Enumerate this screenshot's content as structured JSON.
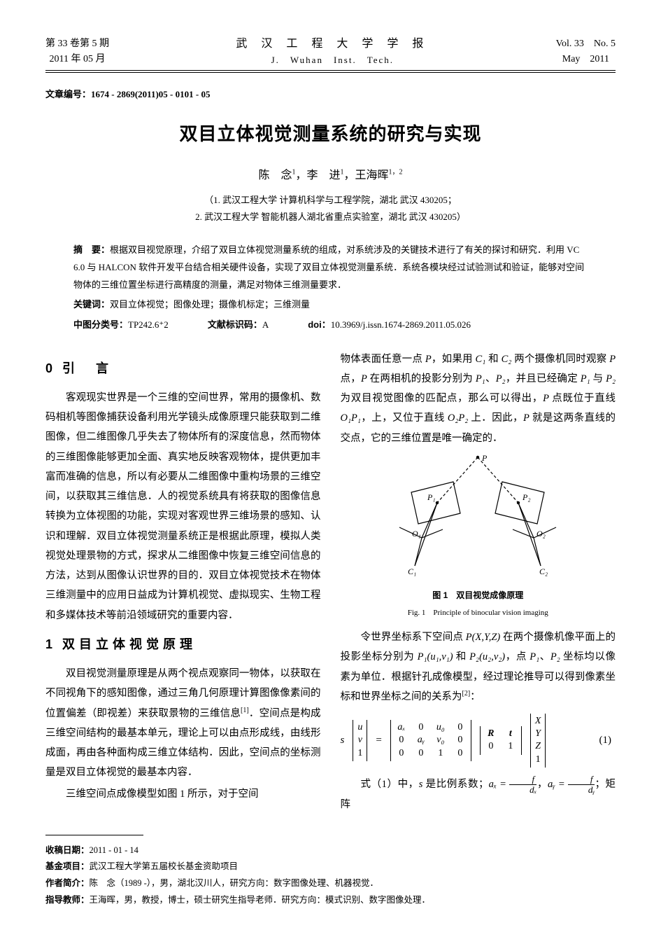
{
  "header": {
    "vol_issue_cn": "第 33 卷第 5 期",
    "date_cn": "2011 年 05 月",
    "journal_cn": "武 汉 工 程 大 学 学 报",
    "journal_en": "J.　Wuhan　Inst.　Tech.",
    "vol_issue_en": "Vol. 33　No. 5",
    "date_en": "May　2011"
  },
  "article_id_label": "文章编号：",
  "article_id": "1674 - 2869(2011)05 - 0101 - 05",
  "title": "双目立体视觉测量系统的研究与实现",
  "authors_html": "陈　念<sup>1</sup>，李　进<sup>1</sup>，王海晖<sup>1，2</sup>",
  "affiliations": [
    "（1. 武汉工程大学 计算机科学与工程学院，湖北 武汉 430205；",
    "2. 武汉工程大学 智能机器人湖北省重点实验室，湖北 武汉 430205）"
  ],
  "abstract": {
    "label": "摘　要：",
    "text": "根据双目视觉原理，介绍了双目立体视觉测量系统的组成，对系统涉及的关键技术进行了有关的探讨和研究．利用 VC 6.0 与 HALCON 软件开发平台结合相关硬件设备，实现了双目立体视觉测量系统．系统各模块经过试验测试和验证，能够对空间物体的三维位置坐标进行高精度的测量，满足对物体三维测量要求．"
  },
  "keywords": {
    "label": "关键词：",
    "text": "双目立体视觉；图像处理；摄像机标定；三维测量"
  },
  "class_no": {
    "label": "中图分类号：",
    "value": "TP242.6⁺2"
  },
  "doc_code": {
    "label": "文献标识码：",
    "value": "A"
  },
  "doi": {
    "label": "doi：",
    "value": "10.3969/j.issn.1674-2869.2011.05.026"
  },
  "sections": {
    "s0": {
      "num": "0",
      "title": "引　言"
    },
    "s1": {
      "num": "1",
      "title": "双目立体视觉原理"
    }
  },
  "body": {
    "p_intro_left": "客观现实世界是一个三维的空间世界，常用的摄像机、数码相机等图像捕获设备利用光学镜头成像原理只能获取到二维图像，但二维图像几乎失去了物体所有的深度信息，然而物体的三维图像能够更加全面、真实地反映客观物体，提供更加丰富而准确的信息，所以有必要从二维图像中重构场景的三维空间，以获取其三维信息．人的视觉系统具有将获取的图像信息转换为立体视图的功能，实现对客观世界三维场景的感知、认识和理解．双目立体视觉测量系统正是根据此原理，模拟人类视觉处理景物的方式，探求从二维图像中恢复三维空间信息的方法，达到从图像认识世界的目的．双目立体视觉技术在物体三维测量中的应用日益成为计算机视觉、虚拟现实、生物工程和多媒体技术等前沿领域研究的重要内容．",
    "p_s1_a": "双目视觉测量原理是从两个视点观察同一物体，以获取在不同视角下的感知图像，通过三角几何原理计算图像像素间的位置偏差（即视差）来获取景物的三维信息",
    "ref1": "[1]",
    "p_s1_b": "．空间点是构成三维空间结构的最基本单元，理论上可以由点形成线，由线形成面，再由各种面构成三维立体结构．因此，空间点的坐标测量是双目立体视觉的最基本内容．",
    "p_s1_c": "三维空间点成像模型如图 1 所示，对于空间",
    "p_right_1a": "物体表面任意一点 ",
    "p_right_1b": "，如果用 ",
    "p_right_1c": " 和 ",
    "p_right_1d": " 两个摄像机同时观察 ",
    "p_right_1e": " 点，",
    "p_right_1f": " 在两相机的投影分别为 ",
    "p_right_1g": "、",
    "p_right_1h": "，并且已经确定 ",
    "p_right_1i": " 与 ",
    "p_right_1j": " 为双目视觉图像的匹配点，那么可以得出，",
    "p_right_1k": " 点既位于直线 ",
    "p_right_1l": "，上，又位于直线 ",
    "p_right_1m": " 上．因此，",
    "p_right_1n": " 就是这两条直线的交点，它的三维位置是唯一确定的．",
    "fig1_cn": "图 1　双目视觉成像原理",
    "fig1_en": "Fig. 1　Principle of binocular vision imaging",
    "p_right_2a": "令世界坐标系下空间点 ",
    "p_right_2b": " 在两个摄像机像平面上的投影坐标分别为 ",
    "p_right_2c": " 和 ",
    "p_right_2d": "，点 ",
    "p_right_2e": "、",
    "p_right_2f": " 坐标均以像素为单位．根据针孔成像模型，经过理论推导可以得到像素坐标和世界坐标之间的关系为",
    "ref2": "[2]",
    "colon": "：",
    "eq1_num": "(1)",
    "p_eq_after_a": "式（1）中，",
    "p_eq_after_b": " 是比例系数；",
    "p_eq_after_c": "，",
    "p_eq_after_d": "；矩阵"
  },
  "figure1": {
    "P": "P",
    "P1": "P₁",
    "P2": "P₂",
    "O1": "O₁",
    "O2": "O₂",
    "C1": "C₁",
    "C2": "C₂",
    "stroke": "#000000",
    "dash": "4,3"
  },
  "equation1": {
    "s": "s",
    "uv1": [
      "u",
      "v",
      "1"
    ],
    "intr": [
      [
        "aₓ",
        "0",
        "u₀",
        "0"
      ],
      [
        "0",
        "aᵧ",
        "v₀",
        "0"
      ],
      [
        "0",
        "0",
        "1",
        "0"
      ]
    ],
    "rt": [
      [
        "R",
        "t"
      ],
      [
        "0",
        "1"
      ]
    ],
    "world": [
      "X",
      "Y",
      "Z",
      "1"
    ]
  },
  "eq_inline": {
    "ax_lhs": "aₓ =",
    "ay_lhs": "aᵧ =",
    "f": "f",
    "dx": "dₓ",
    "dy": "dᵧ"
  },
  "symbols": {
    "P": "P",
    "C1": "C₁",
    "C2": "C₂",
    "P1": "P₁",
    "P2": "P₂",
    "O1P1": "O₁P₁",
    "O2P2": "O₂P₂",
    "Pxyz": "P(X,Y,Z)",
    "P1uv": "P₁(u₁,v₁)",
    "P2uv": "P₂(u₂,v₂)",
    "s": "s"
  },
  "footnotes": {
    "recv": {
      "label": "收稿日期：",
      "text": "2011 - 01 - 14"
    },
    "fund": {
      "label": "基金项目：",
      "text": "武汉工程大学第五届校长基金资助项目"
    },
    "author": {
      "label": "作者简介：",
      "text": "陈　念（1989 -），男，湖北汉川人，研究方向：数字图像处理、机器视觉．"
    },
    "advisor": {
      "label": "指导教师：",
      "text": "王海晖，男，教授，博士，硕士研究生指导老师．研究方向：模式识别、数字图像处理．"
    }
  },
  "colors": {
    "text": "#000000",
    "bg": "#ffffff",
    "rule": "#000000"
  }
}
